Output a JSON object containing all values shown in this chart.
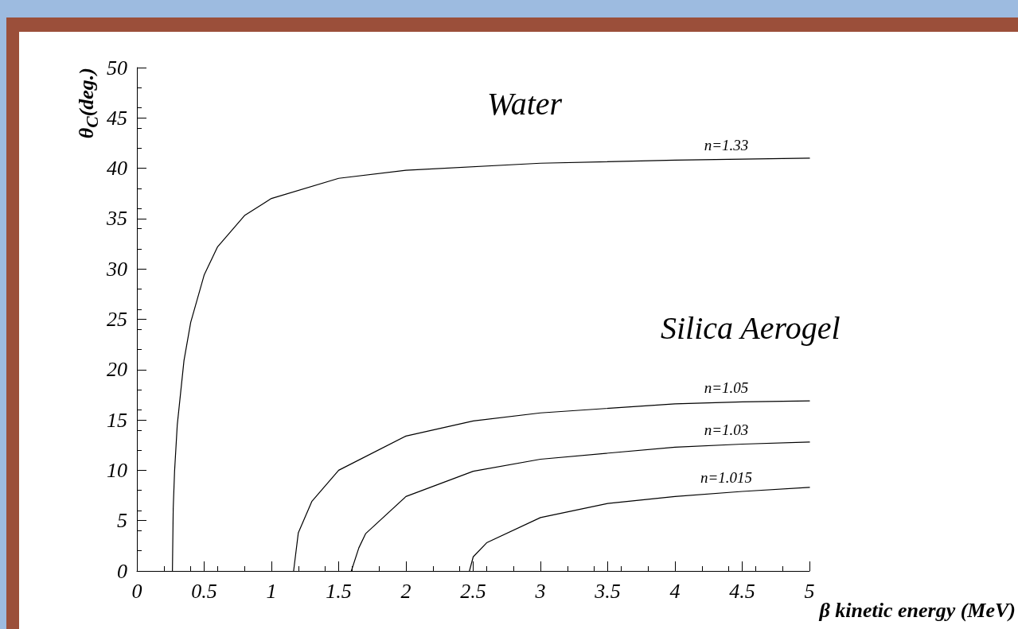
{
  "chart_data": {
    "type": "line",
    "xlabel": "β kinetic energy (MeV)",
    "ylabel": "θ$_{C}$(deg.)",
    "annotations": [
      "Water",
      "Silica Aerogel"
    ],
    "xlim": [
      0,
      5
    ],
    "xticks": [
      0,
      0.5,
      1,
      1.5,
      2,
      2.5,
      3,
      3.5,
      4,
      4.5,
      5
    ],
    "ylim": [
      0,
      50
    ],
    "yticks": [
      0,
      5,
      10,
      15,
      20,
      25,
      30,
      35,
      40,
      45,
      50
    ],
    "grid": false,
    "legend": false,
    "marker": "none",
    "line_style": "solid",
    "series": [
      {
        "name": "n=1.33",
        "color": "#000000",
        "x": [
          0.264,
          0.27,
          0.28,
          0.3,
          0.35,
          0.4,
          0.5,
          0.6,
          0.8,
          1,
          1.5,
          2,
          3,
          4,
          4.5,
          5
        ],
        "values": [
          0,
          6.2,
          9.9,
          14.5,
          20.9,
          24.7,
          29.4,
          32.2,
          35.3,
          37.0,
          39.0,
          39.8,
          40.5,
          40.8,
          40.9,
          41.0
        ]
      },
      {
        "name": "n=1.05",
        "color": "#000000",
        "x": [
          1.165,
          1.2,
          1.3,
          1.5,
          2,
          2.5,
          3,
          4,
          4.5,
          5
        ],
        "values": [
          0,
          3.8,
          6.9,
          10.0,
          13.4,
          14.9,
          15.7,
          16.6,
          16.8,
          16.9
        ]
      },
      {
        "name": "n=1.03",
        "color": "#000000",
        "x": [
          1.594,
          1.65,
          1.7,
          2,
          2.5,
          3,
          4,
          4.5,
          5
        ],
        "values": [
          0,
          2.3,
          3.7,
          7.4,
          9.9,
          11.1,
          12.3,
          12.6,
          12.8
        ]
      },
      {
        "name": "n=1.015",
        "color": "#000000",
        "x": [
          2.472,
          2.5,
          2.6,
          3,
          3.5,
          4,
          4.5,
          5
        ],
        "values": [
          0,
          1.4,
          2.8,
          5.3,
          6.7,
          7.4,
          7.9,
          8.3
        ]
      }
    ]
  }
}
